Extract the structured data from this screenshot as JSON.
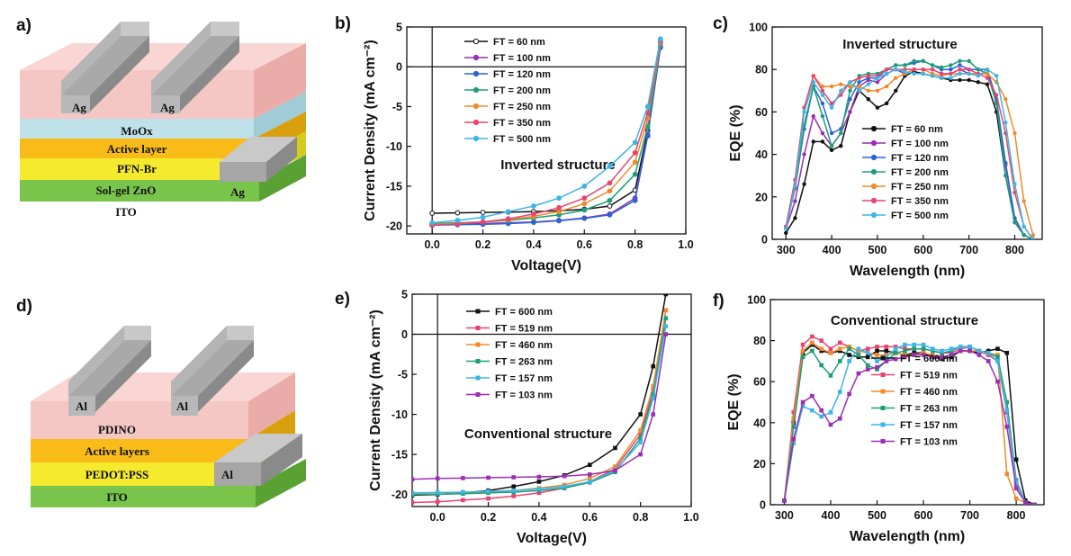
{
  "panel_labels": {
    "a": "a)",
    "b": "b)",
    "c": "c)",
    "d": "d)",
    "e": "e)",
    "f": "f)"
  },
  "device_a": {
    "contact": "Ag",
    "layers": [
      "MoOx",
      "Active layer",
      "PFN-Br",
      "Sol-gel ZnO",
      "ITO"
    ],
    "side_contact": "Ag",
    "colors": [
      "#f5c7c4",
      "#bfe1ea",
      "#f8bb18",
      "#f5ea2e",
      "#79c44b"
    ]
  },
  "device_d": {
    "contact": "Al",
    "layers": [
      "PDINO",
      "Active layers",
      "PEDOT:PSS",
      "ITO"
    ],
    "side_contact": "Al",
    "colors": [
      "#f5c7c4",
      "#f8bb18",
      "#f5ea2e",
      "#79c44b"
    ]
  },
  "chart_data": [
    {
      "id": "b",
      "type": "line",
      "title": "Inverted structure",
      "xlabel": "Voltage(V)",
      "ylabel": "Current Density (mA cm⁻²)",
      "xlim": [
        -0.1,
        1.0
      ],
      "ylim": [
        -21,
        5
      ],
      "xticks": [
        "0.0",
        "0.2",
        "0.4",
        "0.6",
        "0.8",
        "1.0"
      ],
      "yticks": [
        "5",
        "0",
        "-5",
        "-10",
        "-15",
        "-20"
      ],
      "x": [
        0.0,
        0.1,
        0.2,
        0.3,
        0.4,
        0.5,
        0.6,
        0.7,
        0.8,
        0.85,
        0.9
      ],
      "series": [
        {
          "name": "FT = 60 nm",
          "color": "#111111",
          "values": [
            -18.4,
            -18.35,
            -18.3,
            -18.25,
            -18.2,
            -18.1,
            -17.9,
            -17.5,
            -15.5,
            -8.0,
            3.0
          ]
        },
        {
          "name": "FT = 100 nm",
          "color": "#9a2fb4",
          "values": [
            -19.8,
            -19.75,
            -19.7,
            -19.6,
            -19.5,
            -19.3,
            -19.0,
            -18.5,
            -16.5,
            -8.5,
            2.5
          ]
        },
        {
          "name": "FT = 120 nm",
          "color": "#2b63d4",
          "values": [
            -19.9,
            -19.85,
            -19.8,
            -19.7,
            -19.55,
            -19.35,
            -19.05,
            -18.6,
            -16.8,
            -8.7,
            2.4
          ]
        },
        {
          "name": "FT = 200 nm",
          "color": "#1e9e77",
          "values": [
            -19.7,
            -19.6,
            -19.5,
            -19.3,
            -19.0,
            -18.6,
            -18.0,
            -16.8,
            -13.5,
            -7.5,
            2.8
          ]
        },
        {
          "name": "FT = 250 nm",
          "color": "#f08a2c",
          "values": [
            -19.8,
            -19.7,
            -19.5,
            -19.2,
            -18.8,
            -18.2,
            -17.2,
            -15.6,
            -12.0,
            -6.5,
            3.0
          ]
        },
        {
          "name": "FT = 350 nm",
          "color": "#e8456e",
          "values": [
            -19.9,
            -19.75,
            -19.5,
            -19.1,
            -18.5,
            -17.7,
            -16.5,
            -14.6,
            -10.8,
            -5.8,
            3.2
          ]
        },
        {
          "name": "FT = 500 nm",
          "color": "#3db5e6",
          "values": [
            -19.6,
            -19.3,
            -18.9,
            -18.2,
            -17.5,
            -16.5,
            -15.0,
            -12.5,
            -9.5,
            -5.0,
            3.5
          ]
        }
      ]
    },
    {
      "id": "c",
      "type": "line",
      "title": "Inverted structure",
      "xlabel": "Wavelength (nm)",
      "ylabel": "EQE (%)",
      "xlim": [
        270,
        860
      ],
      "ylim": [
        0,
        100
      ],
      "xticks": [
        "300",
        "400",
        "500",
        "600",
        "700",
        "800"
      ],
      "yticks": [
        "0",
        "20",
        "40",
        "60",
        "80",
        "100"
      ],
      "x": [
        300,
        320,
        340,
        360,
        380,
        400,
        420,
        440,
        460,
        480,
        500,
        520,
        540,
        560,
        580,
        600,
        620,
        640,
        660,
        680,
        700,
        720,
        740,
        760,
        780,
        800,
        820,
        840
      ],
      "series": [
        {
          "name": "FT = 60 nm",
          "color": "#111111",
          "values": [
            3,
            10,
            26,
            46,
            46,
            42,
            44,
            60,
            70,
            66,
            62,
            64,
            70,
            77,
            79,
            78,
            77,
            76,
            75,
            75,
            75,
            74,
            73,
            60,
            30,
            8,
            2,
            0
          ]
        },
        {
          "name": "FT = 100 nm",
          "color": "#9a2fb4",
          "values": [
            5,
            18,
            40,
            58,
            50,
            44,
            50,
            60,
            72,
            75,
            74,
            78,
            80,
            78,
            80,
            80,
            80,
            78,
            78,
            80,
            78,
            78,
            78,
            65,
            35,
            10,
            2,
            0
          ]
        },
        {
          "name": "FT = 120 nm",
          "color": "#2b63d4",
          "values": [
            6,
            24,
            52,
            72,
            64,
            50,
            52,
            66,
            74,
            76,
            76,
            80,
            82,
            82,
            83,
            84,
            82,
            80,
            80,
            82,
            80,
            80,
            80,
            66,
            36,
            10,
            2,
            0
          ]
        },
        {
          "name": "FT = 200 nm",
          "color": "#1e9e77",
          "values": [
            6,
            24,
            54,
            72,
            58,
            44,
            50,
            70,
            77,
            78,
            78,
            80,
            82,
            82,
            84,
            84,
            82,
            81,
            82,
            84,
            84,
            80,
            78,
            64,
            30,
            8,
            2,
            0
          ]
        },
        {
          "name": "FT = 250 nm",
          "color": "#f08a2c",
          "values": [
            6,
            28,
            62,
            77,
            72,
            72,
            73,
            72,
            72,
            70,
            70,
            72,
            76,
            78,
            80,
            80,
            78,
            77,
            78,
            78,
            78,
            78,
            78,
            74,
            66,
            50,
            18,
            2
          ]
        },
        {
          "name": "FT = 350 nm",
          "color": "#e8456e",
          "values": [
            6,
            28,
            62,
            77,
            70,
            64,
            68,
            74,
            76,
            77,
            77,
            80,
            80,
            80,
            80,
            80,
            80,
            78,
            78,
            80,
            80,
            78,
            76,
            68,
            50,
            22,
            6,
            0
          ]
        },
        {
          "name": "FT = 500 nm",
          "color": "#3db5e6",
          "values": [
            5,
            25,
            60,
            74,
            68,
            62,
            70,
            74,
            70,
            73,
            76,
            78,
            80,
            79,
            78,
            78,
            77,
            76,
            76,
            78,
            78,
            77,
            80,
            77,
            55,
            26,
            6,
            0
          ]
        }
      ]
    },
    {
      "id": "e",
      "type": "line",
      "title": "Conventional structure",
      "xlabel": "Voltage(V)",
      "ylabel": "Current Density (mA cm⁻²)",
      "xlim": [
        -0.1,
        1.0
      ],
      "ylim": [
        -21.5,
        5
      ],
      "xticks": [
        "0.0",
        "0.2",
        "0.4",
        "0.6",
        "0.8",
        "1.0"
      ],
      "yticks": [
        "5",
        "0",
        "-5",
        "-10",
        "-15",
        "-20"
      ],
      "x": [
        -0.1,
        0.0,
        0.1,
        0.2,
        0.3,
        0.4,
        0.5,
        0.6,
        0.7,
        0.8,
        0.85,
        0.9
      ],
      "series": [
        {
          "name": "FT = 600 nm",
          "color": "#111111",
          "values": [
            -20.1,
            -20.0,
            -19.8,
            -19.5,
            -19.0,
            -18.4,
            -17.6,
            -16.3,
            -14.2,
            -10.0,
            -4.0,
            5.0
          ]
        },
        {
          "name": "FT = 519 nm",
          "color": "#e8456e",
          "values": [
            -21.0,
            -20.9,
            -20.7,
            -20.5,
            -20.2,
            -19.8,
            -19.2,
            -18.4,
            -16.8,
            -12.5,
            -7.0,
            3.0
          ]
        },
        {
          "name": "FT = 460 nm",
          "color": "#f08a2c",
          "values": [
            -20.0,
            -19.95,
            -19.85,
            -19.7,
            -19.5,
            -19.2,
            -18.8,
            -18.0,
            -16.5,
            -12.0,
            -6.5,
            3.0
          ]
        },
        {
          "name": "FT = 263 nm",
          "color": "#1e9e77",
          "values": [
            -20.0,
            -19.95,
            -19.9,
            -19.8,
            -19.7,
            -19.5,
            -19.2,
            -18.5,
            -17.2,
            -13.0,
            -7.5,
            2.0
          ]
        },
        {
          "name": "FT = 157 nm",
          "color": "#3db5e6",
          "values": [
            -19.8,
            -19.75,
            -19.7,
            -19.6,
            -19.5,
            -19.3,
            -19.0,
            -18.4,
            -17.0,
            -13.5,
            -8.0,
            1.0
          ]
        },
        {
          "name": "FT = 103 nm",
          "color": "#9a2fb4",
          "values": [
            -18.1,
            -18.0,
            -17.95,
            -17.9,
            -17.85,
            -17.8,
            -17.7,
            -17.5,
            -17.0,
            -15.0,
            -10.0,
            0.0
          ]
        }
      ]
    },
    {
      "id": "f",
      "type": "line",
      "title": "Conventional structure",
      "xlabel": "Wavelength (nm)",
      "ylabel": "EQE (%)",
      "xlim": [
        270,
        860
      ],
      "ylim": [
        0,
        100
      ],
      "xticks": [
        "300",
        "400",
        "500",
        "600",
        "700",
        "800"
      ],
      "yticks": [
        "0",
        "20",
        "40",
        "60",
        "80",
        "100"
      ],
      "x": [
        300,
        320,
        340,
        360,
        380,
        400,
        420,
        440,
        460,
        480,
        500,
        520,
        540,
        560,
        580,
        600,
        620,
        640,
        660,
        680,
        700,
        720,
        740,
        760,
        780,
        800,
        820,
        840
      ],
      "series": [
        {
          "name": "FT = 600 nm",
          "color": "#111111",
          "values": [
            2,
            40,
            74,
            78,
            75,
            74,
            75,
            73,
            72,
            72,
            75,
            75,
            74,
            73,
            74,
            74,
            72,
            71,
            72,
            75,
            75,
            74,
            75,
            76,
            74,
            22,
            2,
            0
          ]
        },
        {
          "name": "FT = 519 nm",
          "color": "#e8456e",
          "values": [
            2,
            45,
            78,
            82,
            80,
            76,
            79,
            77,
            75,
            76,
            77,
            77,
            77,
            76,
            76,
            76,
            75,
            74,
            74,
            76,
            77,
            75,
            73,
            70,
            45,
            10,
            1,
            0
          ]
        },
        {
          "name": "FT = 460 nm",
          "color": "#f08a2c",
          "values": [
            2,
            42,
            75,
            79,
            76,
            74,
            76,
            77,
            75,
            74,
            73,
            73,
            74,
            73,
            73,
            74,
            73,
            72,
            73,
            75,
            75,
            75,
            74,
            73,
            15,
            3,
            1,
            0
          ]
        },
        {
          "name": "FT = 263 nm",
          "color": "#1e9e77",
          "values": [
            2,
            38,
            72,
            75,
            68,
            63,
            70,
            76,
            73,
            68,
            66,
            70,
            74,
            75,
            76,
            76,
            75,
            74,
            75,
            77,
            77,
            75,
            74,
            72,
            50,
            12,
            1,
            0
          ]
        },
        {
          "name": "FT = 157 nm",
          "color": "#3db5e6",
          "values": [
            2,
            30,
            48,
            46,
            43,
            45,
            55,
            70,
            76,
            74,
            70,
            72,
            76,
            78,
            78,
            78,
            76,
            75,
            76,
            77,
            77,
            75,
            74,
            70,
            46,
            11,
            1,
            0
          ]
        },
        {
          "name": "FT = 103 nm",
          "color": "#9a2fb4",
          "values": [
            2,
            32,
            50,
            53,
            46,
            39,
            42,
            54,
            64,
            66,
            67,
            70,
            71,
            72,
            73,
            73,
            72,
            72,
            73,
            75,
            75,
            73,
            70,
            60,
            38,
            8,
            1,
            0
          ]
        }
      ]
    }
  ]
}
